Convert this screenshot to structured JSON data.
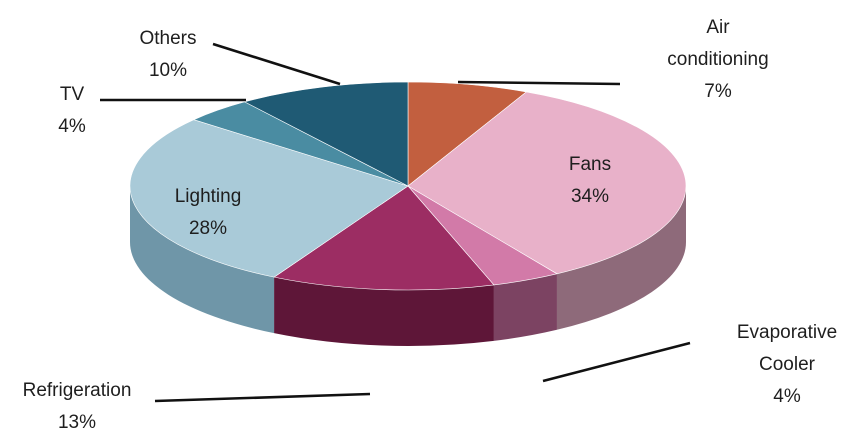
{
  "chart_data": {
    "type": "pie",
    "style": "3d",
    "title": "",
    "slices": [
      {
        "label": "Air conditioning",
        "value": 7,
        "color": "#c25f3f",
        "side": "#7a3a27",
        "label_lines": [
          "Air",
          "conditioning",
          "7%"
        ]
      },
      {
        "label": "Fans",
        "value": 34,
        "color": "#e8b1c9",
        "side": "#8e6a7a",
        "label_lines": [
          "Fans",
          "34%"
        ]
      },
      {
        "label": "Evaporative Cooler",
        "value": 4,
        "color": "#d27aa8",
        "side": "#7c4362",
        "label_lines": [
          "Evaporative",
          "Cooler",
          "4%"
        ]
      },
      {
        "label": "Refrigeration",
        "value": 13,
        "color": "#9c2d63",
        "side": "#5e1638",
        "label_lines": [
          "Refrigeration",
          "13%"
        ]
      },
      {
        "label": "Lighting",
        "value": 28,
        "color": "#a9cad8",
        "side": "#6f96a8",
        "label_lines": [
          "Lighting",
          "28%"
        ]
      },
      {
        "label": "TV",
        "value": 4,
        "color": "#4a8ca2",
        "side": "#2d5e6e",
        "label_lines": [
          "TV",
          "4%"
        ]
      },
      {
        "label": "Others",
        "value": 10,
        "color": "#1f5a74",
        "side": "#12384a",
        "label_lines": [
          "Others",
          "10%"
        ]
      }
    ],
    "legend": "none"
  }
}
